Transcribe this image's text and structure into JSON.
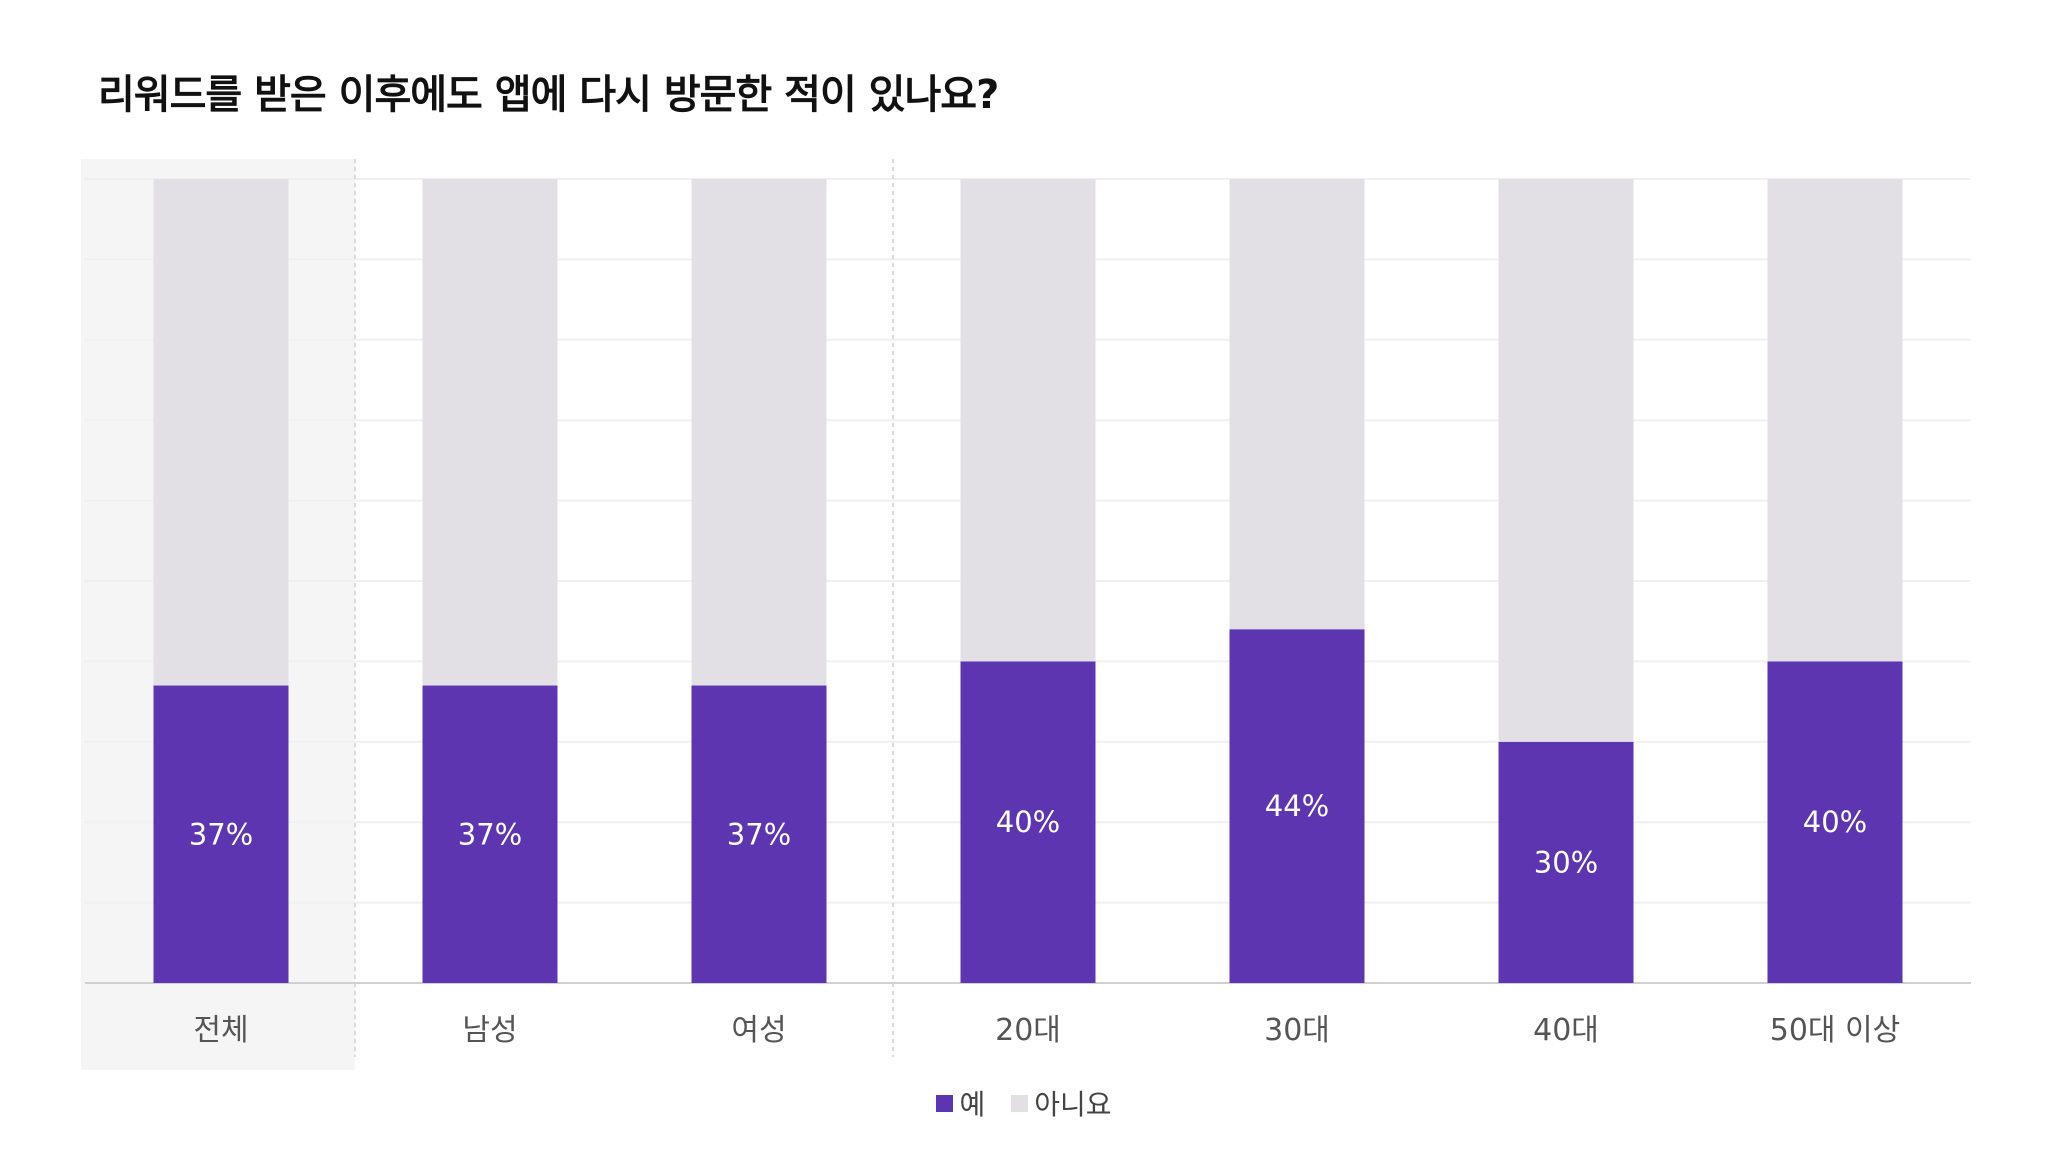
{
  "chart_data": {
    "type": "bar",
    "stacked": true,
    "title": "리워드를 받은 이후에도 앱에 다시 방문한 적이 있나요?",
    "categories": [
      "전체",
      "남성",
      "여성",
      "20대",
      "30대",
      "40대",
      "50대 이상"
    ],
    "series": [
      {
        "name": "예",
        "values": [
          37,
          37,
          37,
          40,
          44,
          30,
          40
        ],
        "color": "#5e35b1"
      },
      {
        "name": "아니요",
        "values": [
          63,
          63,
          63,
          60,
          56,
          70,
          60
        ],
        "color": "#e2e0e5"
      }
    ],
    "data_labels": [
      "37%",
      "37%",
      "37%",
      "40%",
      "44%",
      "30%",
      "40%"
    ],
    "ylim": [
      0,
      100
    ],
    "grid": true,
    "highlighted_category": "전체",
    "legend_position": "bottom-center"
  }
}
